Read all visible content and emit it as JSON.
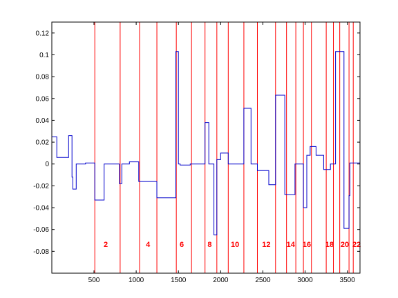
{
  "chart_data": {
    "type": "line",
    "title": "",
    "xlabel": "",
    "ylabel": "",
    "xlim": [
      1,
      3650
    ],
    "ylim": [
      -0.1,
      0.13
    ],
    "grid": false,
    "x_ticks": [
      500,
      1000,
      1500,
      2000,
      2500,
      3000,
      3500
    ],
    "y_ticks": [
      -0.08,
      -0.06,
      -0.04,
      -0.02,
      0,
      0.02,
      0.04,
      0.06,
      0.08,
      0.1,
      0.12
    ],
    "y_tick_labels": [
      "-0.08",
      "-0.06",
      "-0.04",
      "-0.02",
      "0",
      "0.02",
      "0.04",
      "0.06",
      "0.08",
      "0.1",
      "0.12"
    ],
    "line_color": "#0000cc",
    "boundary_color": "#ff0000",
    "boundaries": [
      510,
      810,
      1040,
      1245,
      1475,
      1655,
      1815,
      1955,
      2090,
      2275,
      2435,
      2650,
      2780,
      2890,
      2980,
      3075,
      3250,
      3335,
      3410,
      3520,
      3570
    ],
    "segment_labels": [
      {
        "text": "2",
        "x": 640
      },
      {
        "text": "4",
        "x": 1140
      },
      {
        "text": "6",
        "x": 1540
      },
      {
        "text": "8",
        "x": 1870
      },
      {
        "text": "10",
        "x": 2170
      },
      {
        "text": "12",
        "x": 2540
      },
      {
        "text": "14",
        "x": 2830
      },
      {
        "text": "16",
        "x": 3020
      },
      {
        "text": "18",
        "x": 3290
      },
      {
        "text": "20",
        "x": 3470
      },
      {
        "text": "22",
        "x": 3610
      }
    ],
    "series": [
      {
        "points": [
          [
            1,
            0.025
          ],
          [
            60,
            0.025
          ],
          [
            60,
            0.006
          ],
          [
            200,
            0.006
          ],
          [
            200,
            0.026
          ],
          [
            240,
            0.026
          ],
          [
            240,
            -0.012
          ],
          [
            250,
            -0.012
          ],
          [
            250,
            -0.023
          ],
          [
            290,
            -0.023
          ],
          [
            290,
            0.0
          ],
          [
            400,
            0.0
          ],
          [
            400,
            0.001
          ],
          [
            510,
            0.001
          ],
          [
            510,
            -0.033
          ],
          [
            620,
            -0.033
          ],
          [
            620,
            0.0
          ],
          [
            800,
            0.0
          ],
          [
            800,
            -0.018
          ],
          [
            830,
            -0.018
          ],
          [
            830,
            0.0
          ],
          [
            920,
            0.0
          ],
          [
            920,
            0.002
          ],
          [
            1030,
            0.002
          ],
          [
            1030,
            -0.016
          ],
          [
            1245,
            -0.016
          ],
          [
            1245,
            -0.031
          ],
          [
            1470,
            -0.031
          ],
          [
            1470,
            0.103
          ],
          [
            1500,
            0.103
          ],
          [
            1500,
            0.0
          ],
          [
            1520,
            0.0
          ],
          [
            1520,
            -0.001
          ],
          [
            1640,
            -0.001
          ],
          [
            1640,
            0.0
          ],
          [
            1815,
            0.0
          ],
          [
            1815,
            0.038
          ],
          [
            1860,
            0.038
          ],
          [
            1860,
            0.0
          ],
          [
            1920,
            0.0
          ],
          [
            1920,
            -0.065
          ],
          [
            1955,
            -0.065
          ],
          [
            1955,
            0.004
          ],
          [
            2000,
            0.004
          ],
          [
            2000,
            0.01
          ],
          [
            2090,
            0.01
          ],
          [
            2090,
            0.0
          ],
          [
            2275,
            0.0
          ],
          [
            2275,
            0.051
          ],
          [
            2360,
            0.051
          ],
          [
            2360,
            0.0
          ],
          [
            2435,
            0.0
          ],
          [
            2435,
            -0.006
          ],
          [
            2570,
            -0.006
          ],
          [
            2570,
            -0.019
          ],
          [
            2650,
            -0.019
          ],
          [
            2650,
            0.063
          ],
          [
            2760,
            0.063
          ],
          [
            2760,
            -0.028
          ],
          [
            2880,
            -0.028
          ],
          [
            2880,
            0.0
          ],
          [
            2980,
            0.0
          ],
          [
            2980,
            -0.04
          ],
          [
            3020,
            -0.04
          ],
          [
            3020,
            0.008
          ],
          [
            3060,
            0.008
          ],
          [
            3060,
            0.016
          ],
          [
            3130,
            0.016
          ],
          [
            3130,
            0.008
          ],
          [
            3220,
            0.008
          ],
          [
            3220,
            -0.005
          ],
          [
            3300,
            -0.005
          ],
          [
            3300,
            0.0
          ],
          [
            3360,
            0.0
          ],
          [
            3360,
            0.103
          ],
          [
            3460,
            0.103
          ],
          [
            3460,
            -0.059
          ],
          [
            3520,
            -0.059
          ],
          [
            3520,
            -0.029
          ],
          [
            3530,
            -0.029
          ],
          [
            3530,
            0.001
          ],
          [
            3650,
            0.001
          ]
        ]
      }
    ]
  }
}
